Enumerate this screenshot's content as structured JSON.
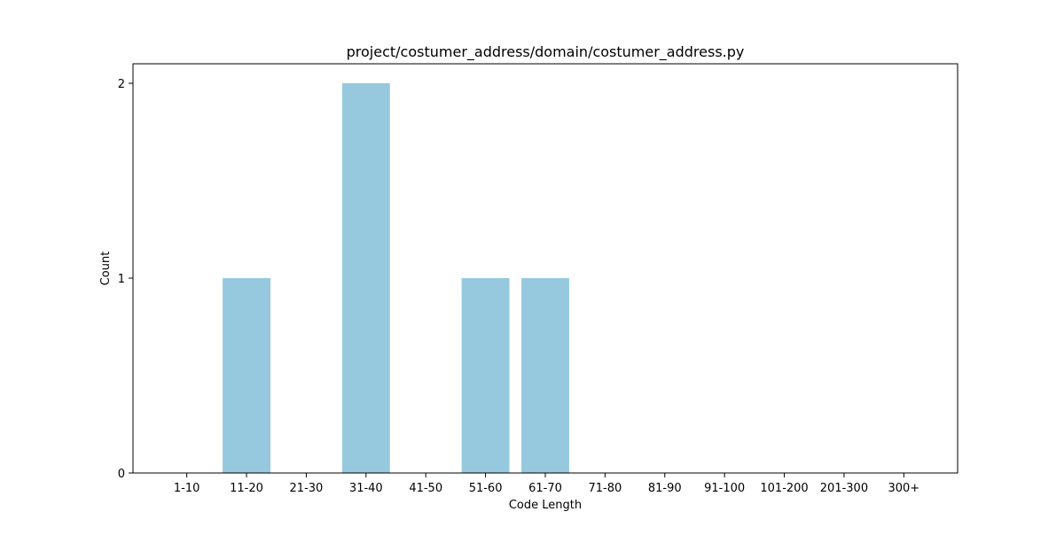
{
  "chart_data": {
    "type": "bar",
    "title": "project/costumer_address/domain/costumer_address.py",
    "xlabel": "Code Length",
    "ylabel": "Count",
    "categories": [
      "1-10",
      "11-20",
      "21-30",
      "31-40",
      "41-50",
      "51-60",
      "61-70",
      "71-80",
      "81-90",
      "91-100",
      "101-200",
      "201-300",
      "300+"
    ],
    "values": [
      0,
      1,
      0,
      2,
      0,
      1,
      1,
      0,
      0,
      0,
      0,
      0,
      0
    ],
    "ylim": [
      0,
      2.1
    ],
    "yticks": [
      0,
      1,
      2
    ],
    "grid": false,
    "bar_color": "#96c9de"
  }
}
